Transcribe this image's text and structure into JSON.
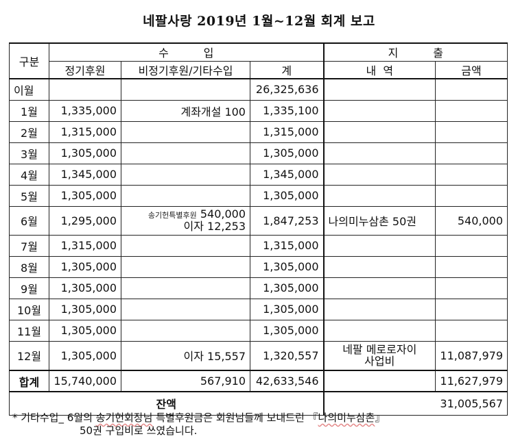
{
  "title": "네팔사랑 2019년 1월~12월 회계 보고",
  "headers": {
    "category": "구분",
    "income": "수          입",
    "expense": "지          출",
    "regular": "정기후원",
    "irregular": "비정기후원/기타수입",
    "total": "계",
    "detail": "내  역",
    "amount": "금액"
  },
  "rows": [
    {
      "month": "이월",
      "regular": "",
      "irregular": "",
      "total": "26,325,636",
      "detail": "",
      "amount": ""
    },
    {
      "month": "1월",
      "regular": "1,335,000",
      "irregular": "계좌개설 100",
      "total": "1,335,100",
      "detail": "",
      "amount": ""
    },
    {
      "month": "2월",
      "regular": "1,315,000",
      "irregular": "",
      "total": "1,315,000",
      "detail": "",
      "amount": ""
    },
    {
      "month": "3월",
      "regular": "1,305,000",
      "irregular": "",
      "total": "1,305,000",
      "detail": "",
      "amount": ""
    },
    {
      "month": "4월",
      "regular": "1,345,000",
      "irregular": "",
      "total": "1,345,000",
      "detail": "",
      "amount": ""
    },
    {
      "month": "5월",
      "regular": "1,305,000",
      "irregular": "",
      "total": "1,305,000",
      "detail": "",
      "amount": ""
    },
    {
      "month": "6월",
      "regular": "1,295,000",
      "irregular_small": "송기헌특별후원",
      "irregular": "540,000",
      "irregular2": "이자 12,253",
      "total": "1,847,253",
      "detail": "나의미누삼촌 50권",
      "amount": "540,000"
    },
    {
      "month": "7월",
      "regular": "1,315,000",
      "irregular": "",
      "total": "1,315,000",
      "detail": "",
      "amount": ""
    },
    {
      "month": "8월",
      "regular": "1,305,000",
      "irregular": "",
      "total": "1,305,000",
      "detail": "",
      "amount": ""
    },
    {
      "month": "9월",
      "regular": "1,305,000",
      "irregular": "",
      "total": "1,305,000",
      "detail": "",
      "amount": ""
    },
    {
      "month": "10월",
      "regular": "1,305,000",
      "irregular": "",
      "total": "1,305,000",
      "detail": "",
      "amount": ""
    },
    {
      "month": "11월",
      "regular": "1,305,000",
      "irregular": "",
      "total": "1,305,000",
      "detail": "",
      "amount": ""
    },
    {
      "month": "12월",
      "regular": "1,305,000",
      "irregular": "이자 15,557",
      "total": "1,320,557",
      "detail": "네팔 메로로자이",
      "detail2": "사업비",
      "amount": "11,087,979"
    }
  ],
  "sum": {
    "label": "합계",
    "regular": "15,740,000",
    "irregular": "567,910",
    "total": "42,633,546",
    "detail": "",
    "amount": "11,627,979"
  },
  "balance": {
    "label": "잔액",
    "amount": "31,005,567"
  },
  "note": {
    "line1_prefix": "* 기타수입_ 6월의 ",
    "line1_name": "송기헌회장님",
    "line1_mid": " 특별후원금은 회원님들께 보내드린 『",
    "line1_book": "나의미누삼촌",
    "line1_end": "』",
    "line2": "50권 구입비로 쓰였습니다."
  }
}
